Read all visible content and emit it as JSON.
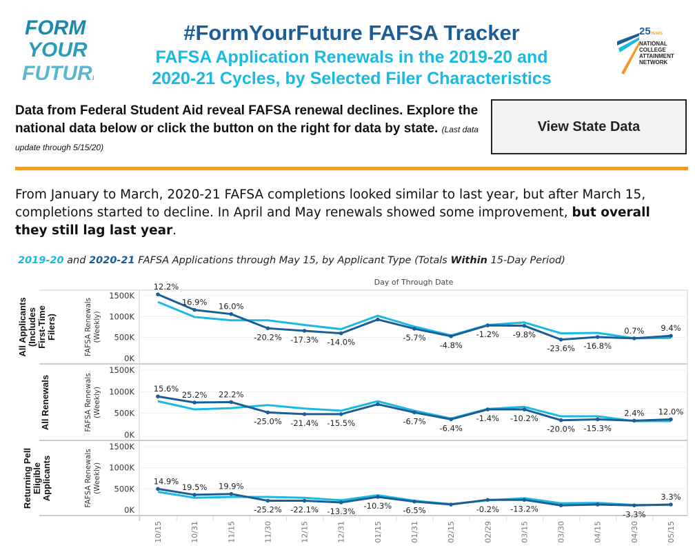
{
  "header": {
    "logo_left_text": "FORM YOUR FUTURE",
    "title": "#FormYourFuture FAFSA Tracker",
    "subtitle_line1": "FAFSA Application Renewals in the 2019-20 and",
    "subtitle_line2": "2020-21 Cycles, by Selected Filer Characteristics",
    "logo_right": {
      "years": "25",
      "years_word": "YEARS",
      "line1": "NATIONAL",
      "line2": "COLLEGE",
      "line3": "ATTAINMENT",
      "line4": "NETWORK"
    }
  },
  "intro": {
    "text": "Data from Federal Student Aid reveal FAFSA renewal declines. Explore the national data below or click the button on the right for data by state.",
    "note": "(Last data update through 5/15/20)",
    "button_label": "View State Data"
  },
  "paragraph": {
    "text": "From January to March, 2020-21 FAFSA completions looked similar to last year, but after March 15, completions started to decline. In April and May renewals showed some improvement, ",
    "bold": "but overall they still lag last year",
    "end": "."
  },
  "caption": {
    "c1": "2019-20",
    "and": " and ",
    "c2": "2020-21",
    "mid": " FAFSA Applications through May 15, by Applicant Type (Totals ",
    "within": "Within",
    "end": " 15-Day Period)"
  },
  "colors": {
    "y2019": "#19b9e3",
    "y2020": "#1b5d96",
    "accent": "#f29a26"
  },
  "chart_data": {
    "type": "line",
    "title": "Day of Through Date",
    "ylabel": "FAFSA Renewals (Weekly)",
    "ylim": [
      0,
      1500
    ],
    "yticks": [
      "1500K",
      "1000K",
      "500K",
      "0K"
    ],
    "categories": [
      "10/15",
      "10/31",
      "11/15",
      "11/30",
      "12/15",
      "12/31",
      "01/15",
      "01/31",
      "02/15",
      "02/29",
      "03/15",
      "03/30",
      "04/15",
      "04/30",
      "05/15"
    ],
    "panels": [
      {
        "label": "All Applicants (Includes First-Time Filers)",
        "series": [
          {
            "name": "2019-20",
            "values": [
              1350,
              990,
              910,
              910,
              800,
              700,
              1020,
              760,
              550,
              800,
              860,
              600,
              610,
              480,
              490
            ]
          },
          {
            "name": "2020-21",
            "values": [
              1530,
              1160,
              1060,
              720,
              660,
              600,
              930,
              710,
              530,
              790,
              780,
              450,
              510,
              480,
              540
            ]
          }
        ],
        "labels": [
          "12.2%",
          "16.9%",
          "16.0%",
          "-20.2%",
          "-17.3%",
          "-14.0%",
          null,
          "-5.7%",
          "-4.8%",
          "-1.2%",
          "-9.8%",
          "-23.6%",
          "-16.8%",
          "0.7%",
          "9.4%"
        ]
      },
      {
        "label": "All Renewals",
        "series": [
          {
            "name": "2019-20",
            "values": [
              780,
              590,
              620,
              690,
              610,
              560,
              780,
              560,
              380,
              600,
              650,
              430,
              430,
              320,
              320
            ]
          },
          {
            "name": "2020-21",
            "values": [
              890,
              750,
              760,
              520,
              480,
              480,
              710,
              520,
              360,
              590,
              590,
              340,
              360,
              330,
              360
            ]
          }
        ],
        "labels": [
          "15.6%",
          "25.2%",
          "22.2%",
          "-25.0%",
          "-21.4%",
          "-15.5%",
          null,
          "-6.7%",
          "-6.4%",
          "-1.4%",
          "-10.2%",
          "-20.0%",
          "-15.3%",
          "2.4%",
          "12.0%"
        ]
      },
      {
        "label": "Returning Pell Eligible Applicants",
        "series": [
          {
            "name": "2019-20",
            "values": [
              430,
              290,
              310,
              310,
              290,
              230,
              350,
              220,
              140,
              230,
              280,
              160,
              170,
              120,
              120
            ]
          },
          {
            "name": "2020-21",
            "values": [
              500,
              360,
              380,
              220,
              220,
              180,
              310,
              200,
              130,
              240,
              240,
              110,
              130,
              110,
              130
            ]
          }
        ],
        "labels": [
          "14.9%",
          "19.5%",
          "19.9%",
          "-25.2%",
          "-22.1%",
          "-13.3%",
          "-10.3%",
          "-6.5%",
          null,
          "-0.2%",
          "-13.2%",
          null,
          null,
          "-3.3%",
          "3.3%"
        ]
      }
    ]
  }
}
